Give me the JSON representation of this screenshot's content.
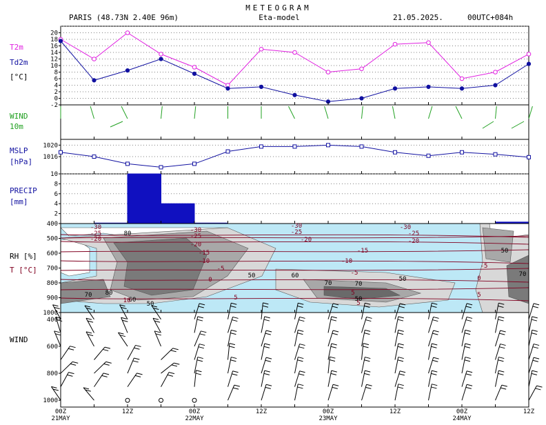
{
  "header": {
    "title": "METEOGRAM",
    "location": "PARIS (48.73N 2.40E  96m)",
    "model": "Eta-model",
    "date": "21.05.2025.",
    "run": "00UTC+084h"
  },
  "colors": {
    "t2m": "#e020e0",
    "td2m": "#1010a0",
    "wind": "#20a020",
    "mslp": "#1010a0",
    "precip": "#1010c0",
    "temp_contour": "#800020",
    "grid": "#808080"
  },
  "x_axis": {
    "ticks": [
      "00Z",
      "12Z",
      "00Z",
      "12Z",
      "00Z",
      "12Z",
      "00Z",
      "12Z"
    ],
    "dates": [
      "21MAY",
      "22MAY",
      "23MAY",
      "24MAY"
    ]
  },
  "panels": {
    "temp": {
      "labels": [
        "T2m",
        "Td2m",
        "[°C]"
      ]
    },
    "wind10": {
      "labels": [
        "WIND",
        "10m"
      ]
    },
    "mslp": {
      "labels": [
        "MSLP",
        "[hPa]"
      ]
    },
    "precip": {
      "labels": [
        "PRECIP",
        "[mm]"
      ]
    },
    "rh": {
      "labels": [
        "RH [%]",
        "T [°C]"
      ]
    },
    "windprof": {
      "labels": [
        "WIND"
      ]
    }
  },
  "chart_data": [
    {
      "type": "line",
      "x_hours": [
        0,
        6,
        12,
        18,
        24,
        30,
        36,
        42,
        48,
        54,
        60,
        66,
        72,
        78,
        84
      ],
      "series": [
        {
          "name": "T2m",
          "values": [
            18,
            12,
            20,
            13.5,
            9.5,
            4,
            15,
            14,
            8,
            9,
            16.5,
            17,
            6,
            8,
            13.5
          ]
        },
        {
          "name": "Td2m",
          "values": [
            17.5,
            5.5,
            8.5,
            12,
            7.5,
            3,
            3.5,
            1,
            -1,
            0,
            3,
            3.5,
            3,
            4,
            10.5
          ]
        }
      ],
      "ylim": [
        -2,
        22
      ],
      "y_ticks": [
        -2,
        0,
        2,
        4,
        6,
        8,
        10,
        12,
        14,
        16,
        18,
        20
      ],
      "y_tick_labels": [
        "-2",
        "0",
        "2",
        "4",
        "6",
        "8",
        "10",
        "12",
        "14",
        "16",
        "18",
        "20"
      ],
      "grid": true
    },
    {
      "type": "line",
      "x_hours": [
        0,
        6,
        12,
        18,
        24,
        30,
        36,
        42,
        48,
        54,
        60,
        66,
        72,
        78,
        84
      ],
      "series": [
        {
          "name": "MSLP",
          "values": [
            1017.5,
            1016,
            1013.5,
            1012.3,
            1013.5,
            1017.8,
            1019.5,
            1019.5,
            1020,
            1019.5,
            1017.5,
            1016.3,
            1017.5,
            1016.8,
            1015.8
          ]
        }
      ],
      "ylim": [
        1010,
        1022
      ],
      "y_ticks": [
        1016,
        1020
      ],
      "y_tick_labels": [
        "1016",
        "1020"
      ],
      "grid": true
    },
    {
      "type": "bar",
      "x_hours": [
        0,
        6,
        12,
        18,
        24,
        30,
        36,
        42,
        48,
        54,
        60,
        66,
        72,
        78,
        84
      ],
      "values": [
        0,
        0,
        0.1,
        10,
        4,
        0.1,
        0,
        0,
        0,
        0,
        0,
        0,
        0,
        0,
        0.3
      ],
      "ylim": [
        0,
        10
      ],
      "y_ticks": [
        2,
        4,
        6,
        8,
        10
      ],
      "y_tick_labels": [
        "2",
        "4",
        "6",
        "8",
        "10"
      ],
      "grid": true
    },
    {
      "type": "heatmap",
      "y_ticks": [
        400,
        500,
        600,
        700,
        800,
        900,
        1000
      ],
      "y_tick_labels": [
        "400",
        "500",
        "600",
        "700",
        "800",
        "900",
        "1000"
      ],
      "ylim": [
        400,
        1000
      ],
      "rh_contour_labels": [
        "80",
        "70",
        "50",
        "60",
        "70",
        "50",
        "80",
        "60",
        "50",
        "50",
        "70",
        "50",
        "70"
      ],
      "temp_contour_labels": [
        "-30",
        "-25",
        "-20",
        "-30",
        "-25",
        "-20",
        "-15",
        "-10",
        "-5",
        "0",
        "5",
        "-30",
        "-25",
        "-20",
        "-30",
        "-25",
        "-20",
        "-15",
        "-10",
        "-5",
        "5",
        "-5",
        "0",
        "5",
        "10",
        "5"
      ]
    },
    {
      "type": "scatter",
      "y_ticks": [
        400,
        600,
        800,
        1000
      ],
      "y_tick_labels": [
        "400",
        "600",
        "800",
        "1000"
      ],
      "ylim": [
        350,
        1050
      ]
    }
  ]
}
